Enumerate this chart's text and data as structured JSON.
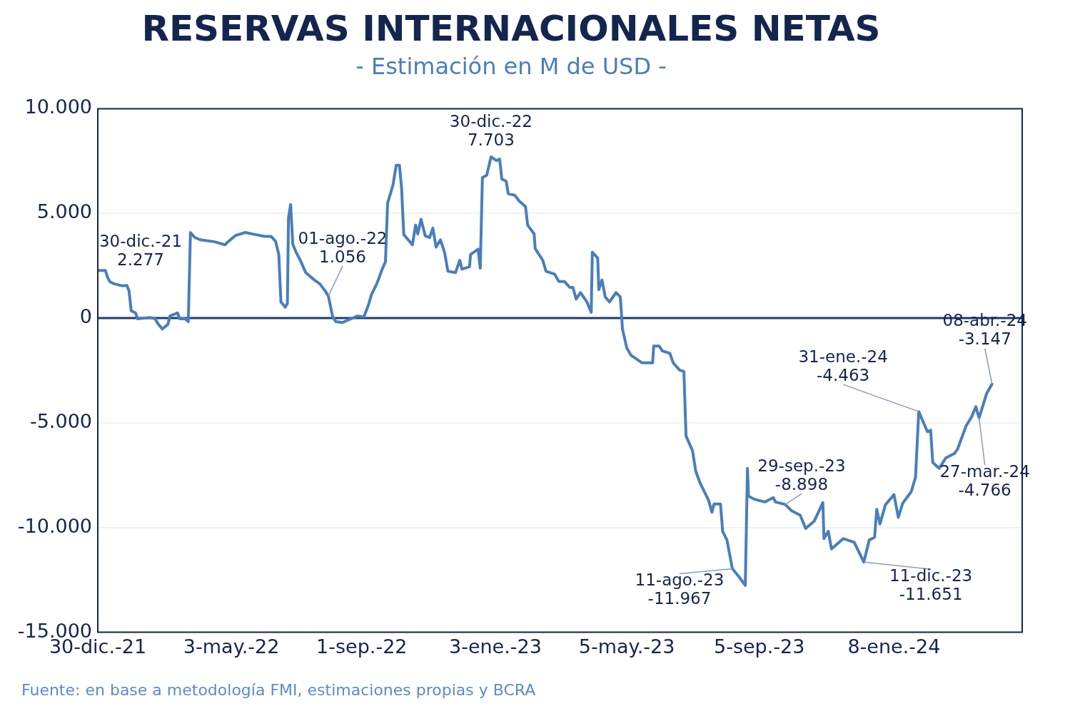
{
  "chart_data": {
    "type": "line",
    "title": "RESERVAS INTERNACIONALES NETAS",
    "subtitle": "- Estimación en M de USD -",
    "x": [
      "2021-12-30",
      "2022-01-06",
      "2022-01-08",
      "2022-01-10",
      "2022-01-14",
      "2022-01-22",
      "2022-01-26",
      "2022-01-28",
      "2022-01-30",
      "2022-02-03",
      "2022-02-05",
      "2022-02-16",
      "2022-02-21",
      "2022-02-24",
      "2022-02-28",
      "2022-03-05",
      "2022-03-07",
      "2022-03-14",
      "2022-03-16",
      "2022-03-21",
      "2022-03-24",
      "2022-03-26",
      "2022-03-30",
      "2022-04-04",
      "2022-04-17",
      "2022-04-27",
      "2022-04-30",
      "2022-05-07",
      "2022-05-16",
      "2022-05-25",
      "2022-06-03",
      "2022-06-09",
      "2022-06-13",
      "2022-06-16",
      "2022-06-18",
      "2022-06-22",
      "2022-06-24",
      "2022-06-25",
      "2022-06-27",
      "2022-06-29",
      "2022-07-02",
      "2022-07-06",
      "2022-07-11",
      "2022-07-19",
      "2022-07-24",
      "2022-07-29",
      "2022-08-01",
      "2022-08-05",
      "2022-08-08",
      "2022-08-14",
      "2022-08-28",
      "2022-09-03",
      "2022-09-07",
      "2022-09-10",
      "2022-09-15",
      "2022-09-20",
      "2022-09-23",
      "2022-09-25",
      "2022-09-30",
      "2022-10-03",
      "2022-10-06",
      "2022-10-08",
      "2022-10-10",
      "2022-10-18",
      "2022-10-21",
      "2022-10-23",
      "2022-10-26",
      "2022-10-30",
      "2022-11-03",
      "2022-11-06",
      "2022-11-09",
      "2022-11-13",
      "2022-11-17",
      "2022-11-20",
      "2022-11-27",
      "2022-12-01",
      "2022-12-03",
      "2022-12-10",
      "2022-12-11",
      "2022-12-18",
      "2022-12-20",
      "2022-12-22",
      "2022-12-26",
      "2022-12-30",
      "2023-01-04",
      "2023-01-07",
      "2023-01-09",
      "2023-01-13",
      "2023-01-15",
      "2023-01-21",
      "2023-01-25",
      "2023-01-31",
      "2023-02-02",
      "2023-02-08",
      "2023-02-09",
      "2023-02-16",
      "2023-02-19",
      "2023-02-27",
      "2023-03-03",
      "2023-03-08",
      "2023-03-13",
      "2023-03-16",
      "2023-03-19",
      "2023-03-23",
      "2023-03-29",
      "2023-04-02",
      "2023-04-03",
      "2023-04-08",
      "2023-04-09",
      "2023-04-12",
      "2023-04-15",
      "2023-04-19",
      "2023-04-25",
      "2023-04-29",
      "2023-05-01",
      "2023-05-05",
      "2023-05-09",
      "2023-05-13",
      "2023-05-19",
      "2023-05-29",
      "2023-05-30",
      "2023-06-04",
      "2023-06-07",
      "2023-06-14",
      "2023-06-17",
      "2023-06-23",
      "2023-06-27",
      "2023-06-29",
      "2023-07-05",
      "2023-07-08",
      "2023-07-12",
      "2023-07-20",
      "2023-07-23",
      "2023-07-25",
      "2023-07-31",
      "2023-08-02",
      "2023-08-06",
      "2023-08-11",
      "2023-08-17",
      "2023-08-23",
      "2023-08-25",
      "2023-08-26",
      "2023-08-31",
      "2023-09-10",
      "2023-09-18",
      "2023-09-20",
      "2023-09-29",
      "2023-10-05",
      "2023-10-13",
      "2023-10-18",
      "2023-10-26",
      "2023-11-03",
      "2023-11-04",
      "2023-11-08",
      "2023-11-11",
      "2023-11-22",
      "2023-12-02",
      "2023-12-11",
      "2023-12-16",
      "2023-12-21",
      "2023-12-23",
      "2023-12-26",
      "2023-12-31",
      "2024-01-08",
      "2024-01-12",
      "2024-01-16",
      "2024-01-24",
      "2024-01-28",
      "2024-01-31",
      "2024-02-08",
      "2024-02-11",
      "2024-02-13",
      "2024-02-19",
      "2024-02-25",
      "2024-03-04",
      "2024-03-07",
      "2024-03-15",
      "2024-03-20",
      "2024-03-24",
      "2024-03-27",
      "2024-04-03",
      "2024-04-08"
    ],
    "series": [
      {
        "color": "#4a7ebb",
        "values": [
          2277,
          2277,
          1960,
          1750,
          1640,
          1540,
          1560,
          1300,
          350,
          250,
          -30,
          30,
          -20,
          -280,
          -520,
          -300,
          100,
          250,
          -30,
          -30,
          -170,
          4090,
          3850,
          3740,
          3650,
          3500,
          3650,
          3950,
          4090,
          3990,
          3900,
          3900,
          3670,
          3040,
          770,
          520,
          700,
          4790,
          5420,
          3530,
          3150,
          2760,
          2170,
          1820,
          1640,
          1300,
          1056,
          70,
          -170,
          -210,
          100,
          60,
          600,
          1120,
          1640,
          2340,
          2690,
          5490,
          6360,
          7300,
          7300,
          6190,
          3990,
          3500,
          4440,
          4020,
          4720,
          3920,
          3850,
          4300,
          3390,
          3740,
          3110,
          2240,
          2170,
          2760,
          2340,
          2450,
          3040,
          3290,
          2380,
          6710,
          6820,
          7703,
          7520,
          7590,
          6640,
          6540,
          5940,
          5870,
          5600,
          5320,
          4440,
          4020,
          3320,
          2760,
          2240,
          2100,
          1750,
          1750,
          1470,
          1470,
          910,
          1220,
          770,
          280,
          3150,
          2870,
          1360,
          1820,
          1010,
          770,
          1220,
          1010,
          -520,
          -1430,
          -1780,
          -1920,
          -2130,
          -2130,
          -1330,
          -1330,
          -1570,
          -1680,
          -2130,
          -2480,
          -2550,
          -5630,
          -6330,
          -7310,
          -7870,
          -8710,
          -9270,
          -8880,
          -8880,
          -10180,
          -10600,
          -11967,
          -12340,
          -12760,
          -7170,
          -8500,
          -8640,
          -8780,
          -8570,
          -8780,
          -8898,
          -9200,
          -9410,
          -10040,
          -9690,
          -8810,
          -10530,
          -10180,
          -11020,
          -10530,
          -10700,
          -11651,
          -10600,
          -10460,
          -9130,
          -9830,
          -8920,
          -8430,
          -9510,
          -8850,
          -8290,
          -7600,
          -4463,
          -5420,
          -5350,
          -6890,
          -7170,
          -6680,
          -6470,
          -6260,
          -5140,
          -4720,
          -4230,
          -4766,
          -3600,
          -3147
        ]
      }
    ],
    "xlim": [
      "2021-12-30",
      "2024-05-06"
    ],
    "xticks": [
      {
        "value": "2021-12-30",
        "label": "30-dic.-21"
      },
      {
        "value": "2022-05-03",
        "label": "3-may.-22"
      },
      {
        "value": "2022-09-01",
        "label": "1-sep.-22"
      },
      {
        "value": "2023-01-03",
        "label": "3-ene.-23"
      },
      {
        "value": "2023-05-05",
        "label": "5-may.-23"
      },
      {
        "value": "2023-09-05",
        "label": "5-sep.-23"
      },
      {
        "value": "2024-01-08",
        "label": "8-ene.-24"
      }
    ],
    "ylim": [
      -15000,
      10000
    ],
    "yticks": [
      {
        "value": -15000,
        "label": "-15.000"
      },
      {
        "value": -10000,
        "label": "-10.000"
      },
      {
        "value": -5000,
        "label": "-5.000"
      },
      0,
      {
        "value": 5000,
        "label": "5.000"
      },
      {
        "value": 10000,
        "label": "10.000"
      }
    ],
    "grid": "y",
    "marker": "none",
    "line_style": "solid",
    "ref_lines": [
      {
        "axis": "y",
        "value": 0,
        "color": "#1f3a6e"
      }
    ],
    "annotations": [
      {
        "text": "30-dic.-21\n2.277",
        "x": "2021-12-30",
        "y": 2277
      },
      {
        "text": "01-ago.-22\n1.056",
        "x": "2022-08-01",
        "y": 1056
      },
      {
        "text": "30-dic.-22\n7.703",
        "x": "2022-12-30",
        "y": 7703
      },
      {
        "text": "11-ago.-23\n-11.967",
        "x": "2023-08-11",
        "y": -11967
      },
      {
        "text": "29-sep.-23\n-8.898",
        "x": "2023-09-29",
        "y": -8898
      },
      {
        "text": "11-dic.-23\n-11.651",
        "x": "2023-12-11",
        "y": -11651
      },
      {
        "text": "31-ene.-24\n-4.463",
        "x": "2024-01-31",
        "y": -4463
      },
      {
        "text": "27-mar.-24\n-4.766",
        "x": "2024-03-27",
        "y": -4766
      },
      {
        "text": "08-abr.-24\n-3.147",
        "x": "2024-04-08",
        "y": -3147
      },
      "Fuente: en base a metodología FMI, estimaciones propias y BCRA"
    ]
  }
}
